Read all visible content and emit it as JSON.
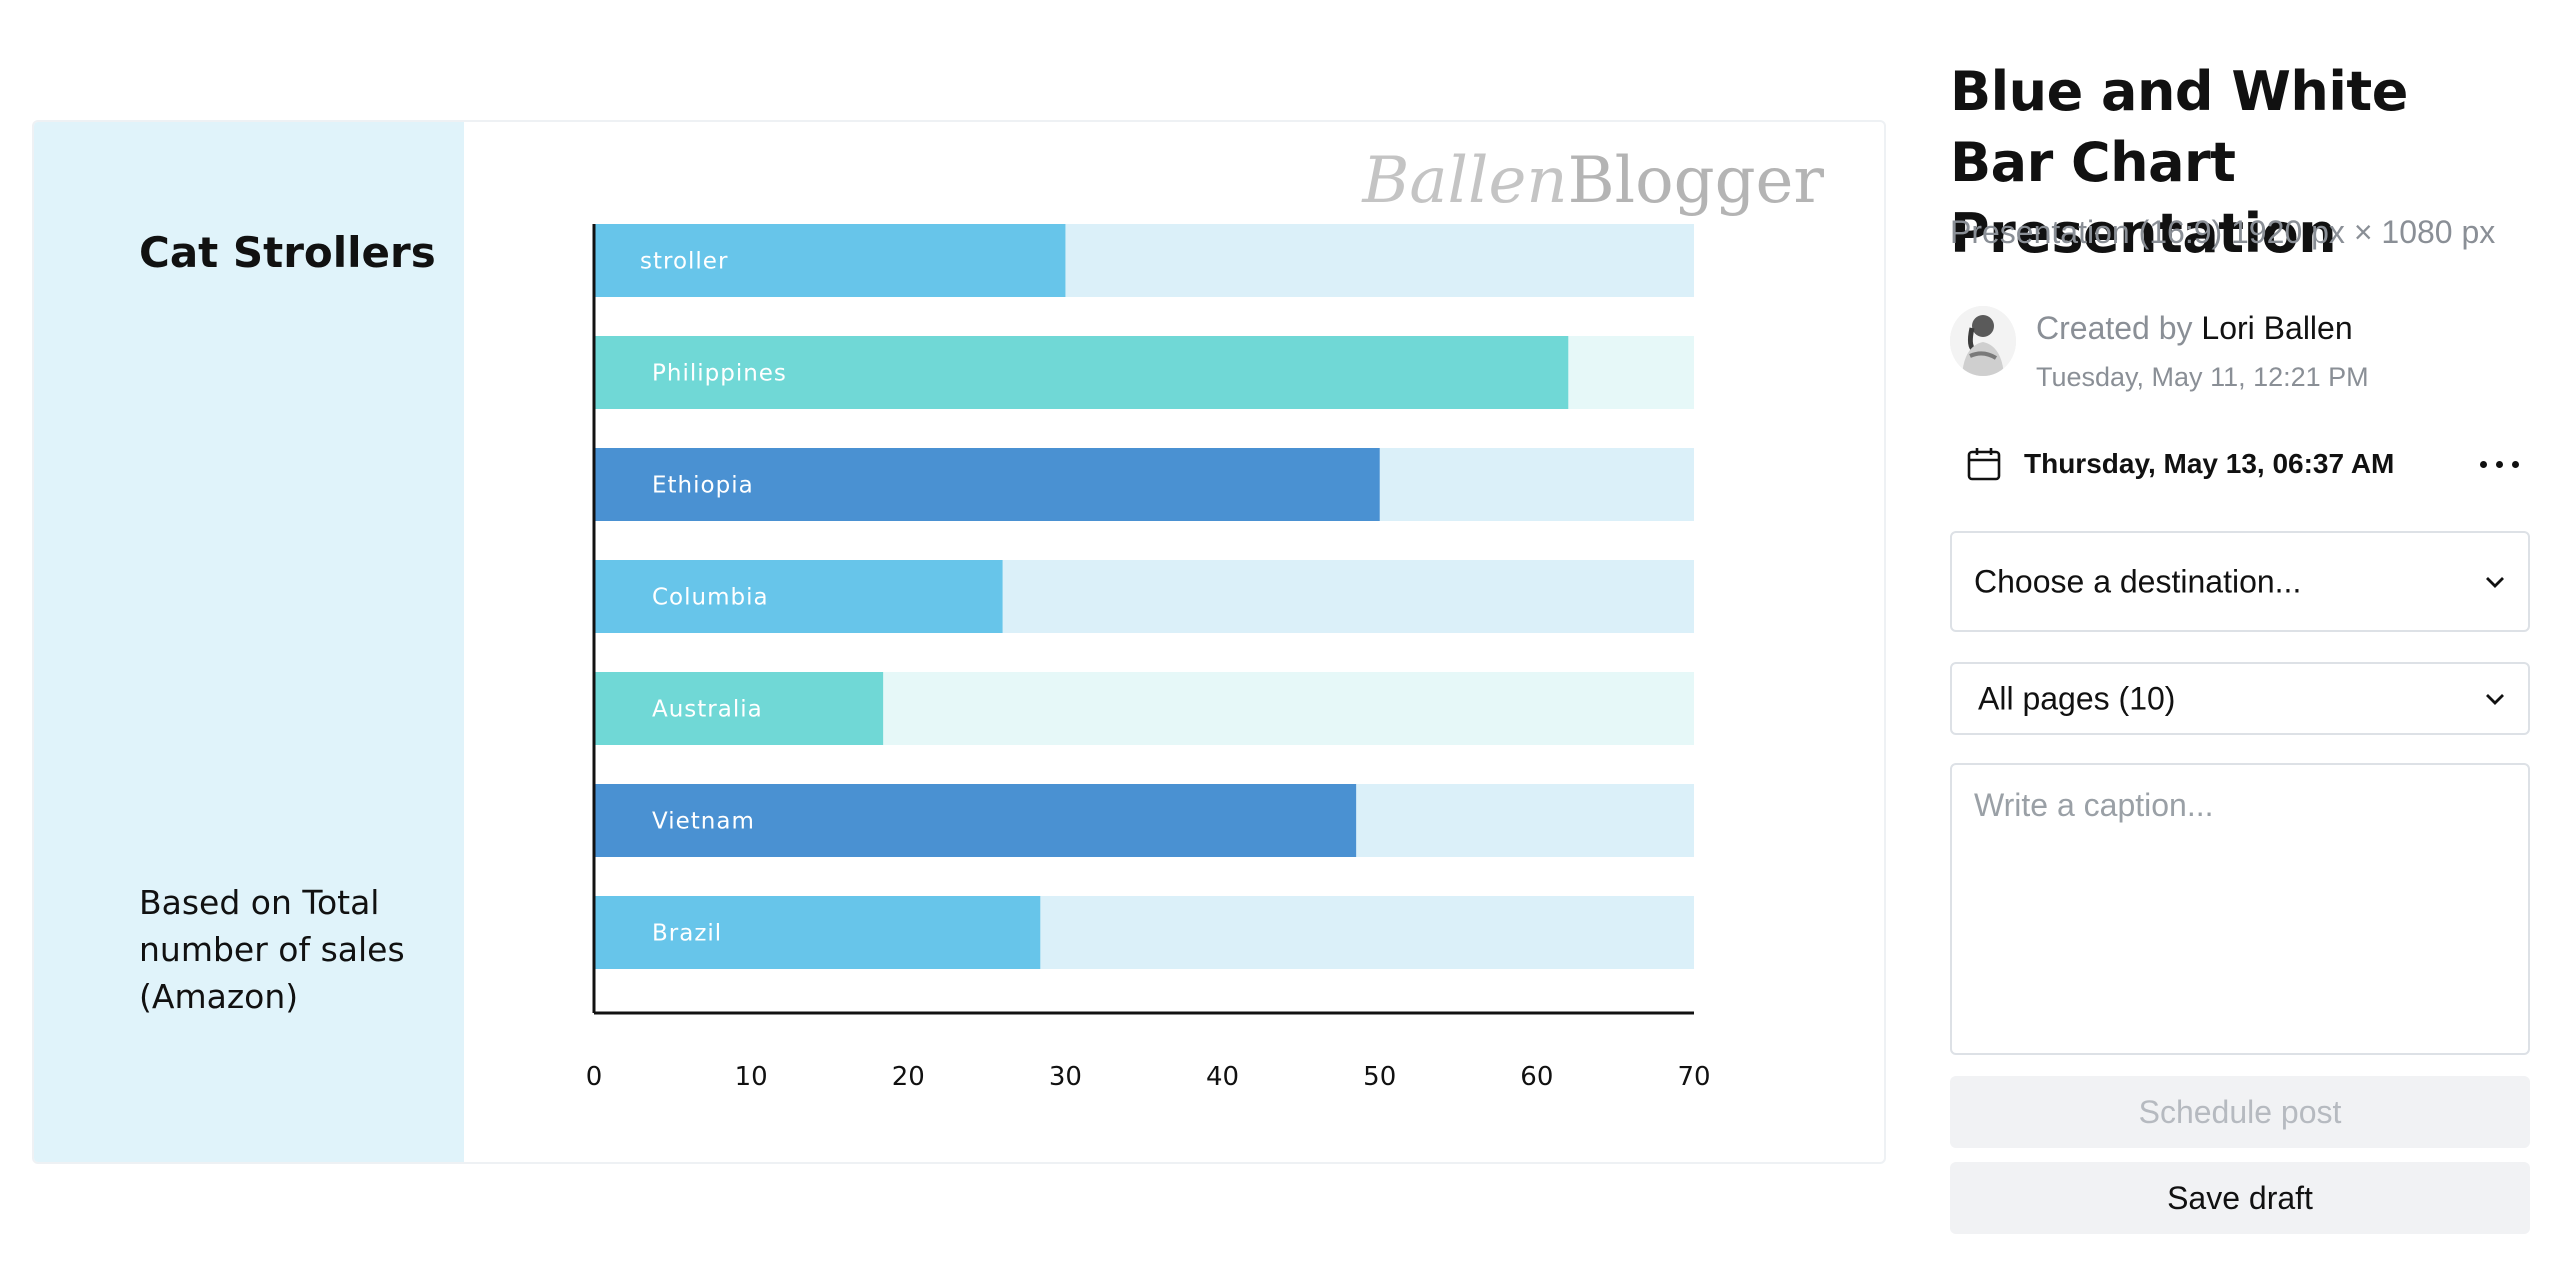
{
  "slide": {
    "title": "Cat Strollers",
    "note": "Based on Total number of sales (Amazon)",
    "watermark_part1": "Ballen",
    "watermark_part2": "Blogger"
  },
  "chart_data": {
    "type": "bar",
    "orientation": "horizontal",
    "categories": [
      "stroller",
      "Philippines",
      "Ethiopia",
      "Columbia",
      "Australia",
      "Vietnam",
      "Brazil"
    ],
    "values": [
      30,
      62,
      50,
      26,
      18.4,
      48.5,
      28.4
    ],
    "xlim": [
      0,
      70
    ],
    "xticks": [
      0,
      10,
      20,
      30,
      40,
      50,
      60,
      70
    ],
    "grid": false,
    "bar_colors": [
      "#67c5ea",
      "#70d8d6",
      "#4a91d2",
      "#67c5ea",
      "#70d8d6",
      "#4a91d2",
      "#67c5ea"
    ],
    "track_colors": [
      "#dbf0f9",
      "#e6f8f8",
      "#dbf0f9",
      "#dbf0f9",
      "#e6f8f8",
      "#dbf0f9",
      "#dbf0f9"
    ]
  },
  "panel": {
    "design_title": "Blue and White Bar Chart Presentation",
    "design_meta": "Presentation (16:9) 1920 px × 1080 px",
    "created_prefix": "Created by",
    "author": "Lori Ballen",
    "created_time": "Tuesday, May 11, 12:21 PM",
    "schedule_date": "Thursday, May 13, 06:37 AM",
    "destination_value": "Choose a destination...",
    "pages_value": "All pages (10)",
    "caption_placeholder": "Write a caption...",
    "schedule_button": "Schedule post",
    "save_draft_button": "Save draft"
  },
  "icons": {
    "calendar": "calendar-icon",
    "more": "more-horizontal-icon",
    "chevron": "chevron-down-icon"
  }
}
